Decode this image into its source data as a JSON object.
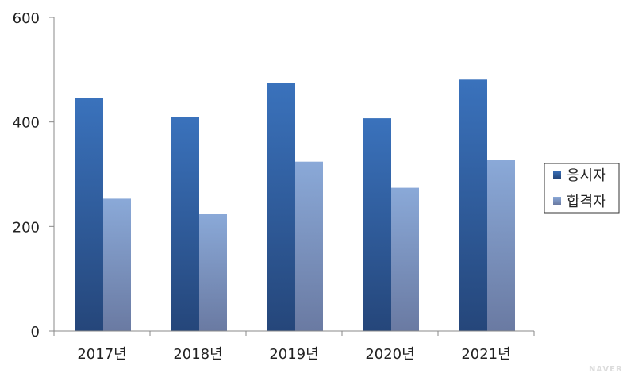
{
  "chart_data": {
    "type": "bar",
    "categories": [
      "2017년",
      "2018년",
      "2019년",
      "2020년",
      "2021년"
    ],
    "series": [
      {
        "name": "응시자",
        "values": [
          445,
          410,
          475,
          407,
          481
        ]
      },
      {
        "name": "합격자",
        "values": [
          253,
          224,
          324,
          274,
          327
        ]
      }
    ],
    "ylim": [
      0,
      600
    ],
    "yticks": [
      "0",
      "200",
      "400",
      "600"
    ],
    "grid": false,
    "legend_position": "right",
    "colors": {
      "series_1_top": "#3a72bc",
      "series_1_bottom": "#25467a",
      "series_2_top": "#8aa9d8",
      "series_2_bottom": "#6a7aa2",
      "axis": "#888888"
    }
  },
  "watermark": "NAVER"
}
